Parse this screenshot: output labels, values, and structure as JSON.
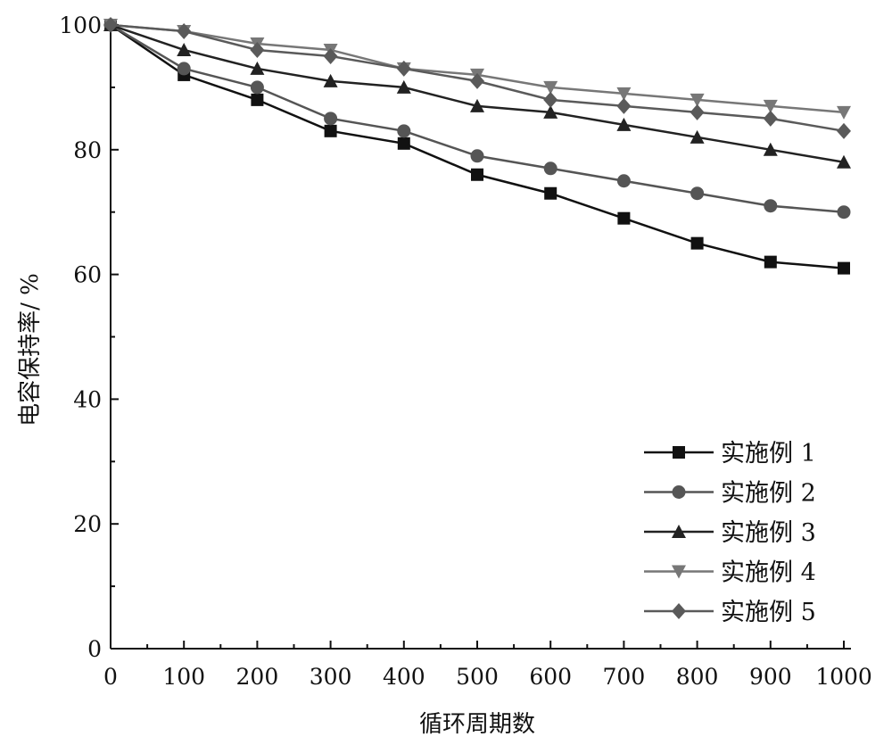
{
  "chart_data": {
    "type": "line",
    "xlabel": "循环周期数",
    "ylabel": "电容保持率/ %",
    "xlim": [
      0,
      1000
    ],
    "ylim": [
      0,
      100
    ],
    "x_ticks": [
      0,
      100,
      200,
      300,
      400,
      500,
      600,
      700,
      800,
      900,
      1000
    ],
    "y_ticks": [
      0,
      20,
      40,
      60,
      80,
      100
    ],
    "grid": false,
    "legend_position": "bottom-right",
    "x": [
      0,
      100,
      200,
      300,
      400,
      500,
      600,
      700,
      800,
      900,
      1000
    ],
    "series": [
      {
        "name": "实施例 1",
        "marker": "square",
        "color": "#111111",
        "values": [
          100,
          92,
          88,
          83,
          81,
          76,
          73,
          69,
          65,
          62,
          61
        ]
      },
      {
        "name": "实施例 2",
        "marker": "circle",
        "color": "#555555",
        "values": [
          100,
          93,
          90,
          85,
          83,
          79,
          77,
          75,
          73,
          71,
          70
        ]
      },
      {
        "name": "实施例 3",
        "marker": "triangle-up",
        "color": "#222222",
        "values": [
          100,
          96,
          93,
          91,
          90,
          87,
          86,
          84,
          82,
          80,
          78
        ]
      },
      {
        "name": "实施例 4",
        "marker": "triangle-down",
        "color": "#777777",
        "values": [
          100,
          99,
          97,
          96,
          93,
          92,
          90,
          89,
          88,
          87,
          86
        ]
      },
      {
        "name": "实施例 5",
        "marker": "diamond",
        "color": "#5a5a5a",
        "values": [
          100,
          99,
          96,
          95,
          93,
          91,
          88,
          87,
          86,
          85,
          83
        ]
      }
    ]
  }
}
